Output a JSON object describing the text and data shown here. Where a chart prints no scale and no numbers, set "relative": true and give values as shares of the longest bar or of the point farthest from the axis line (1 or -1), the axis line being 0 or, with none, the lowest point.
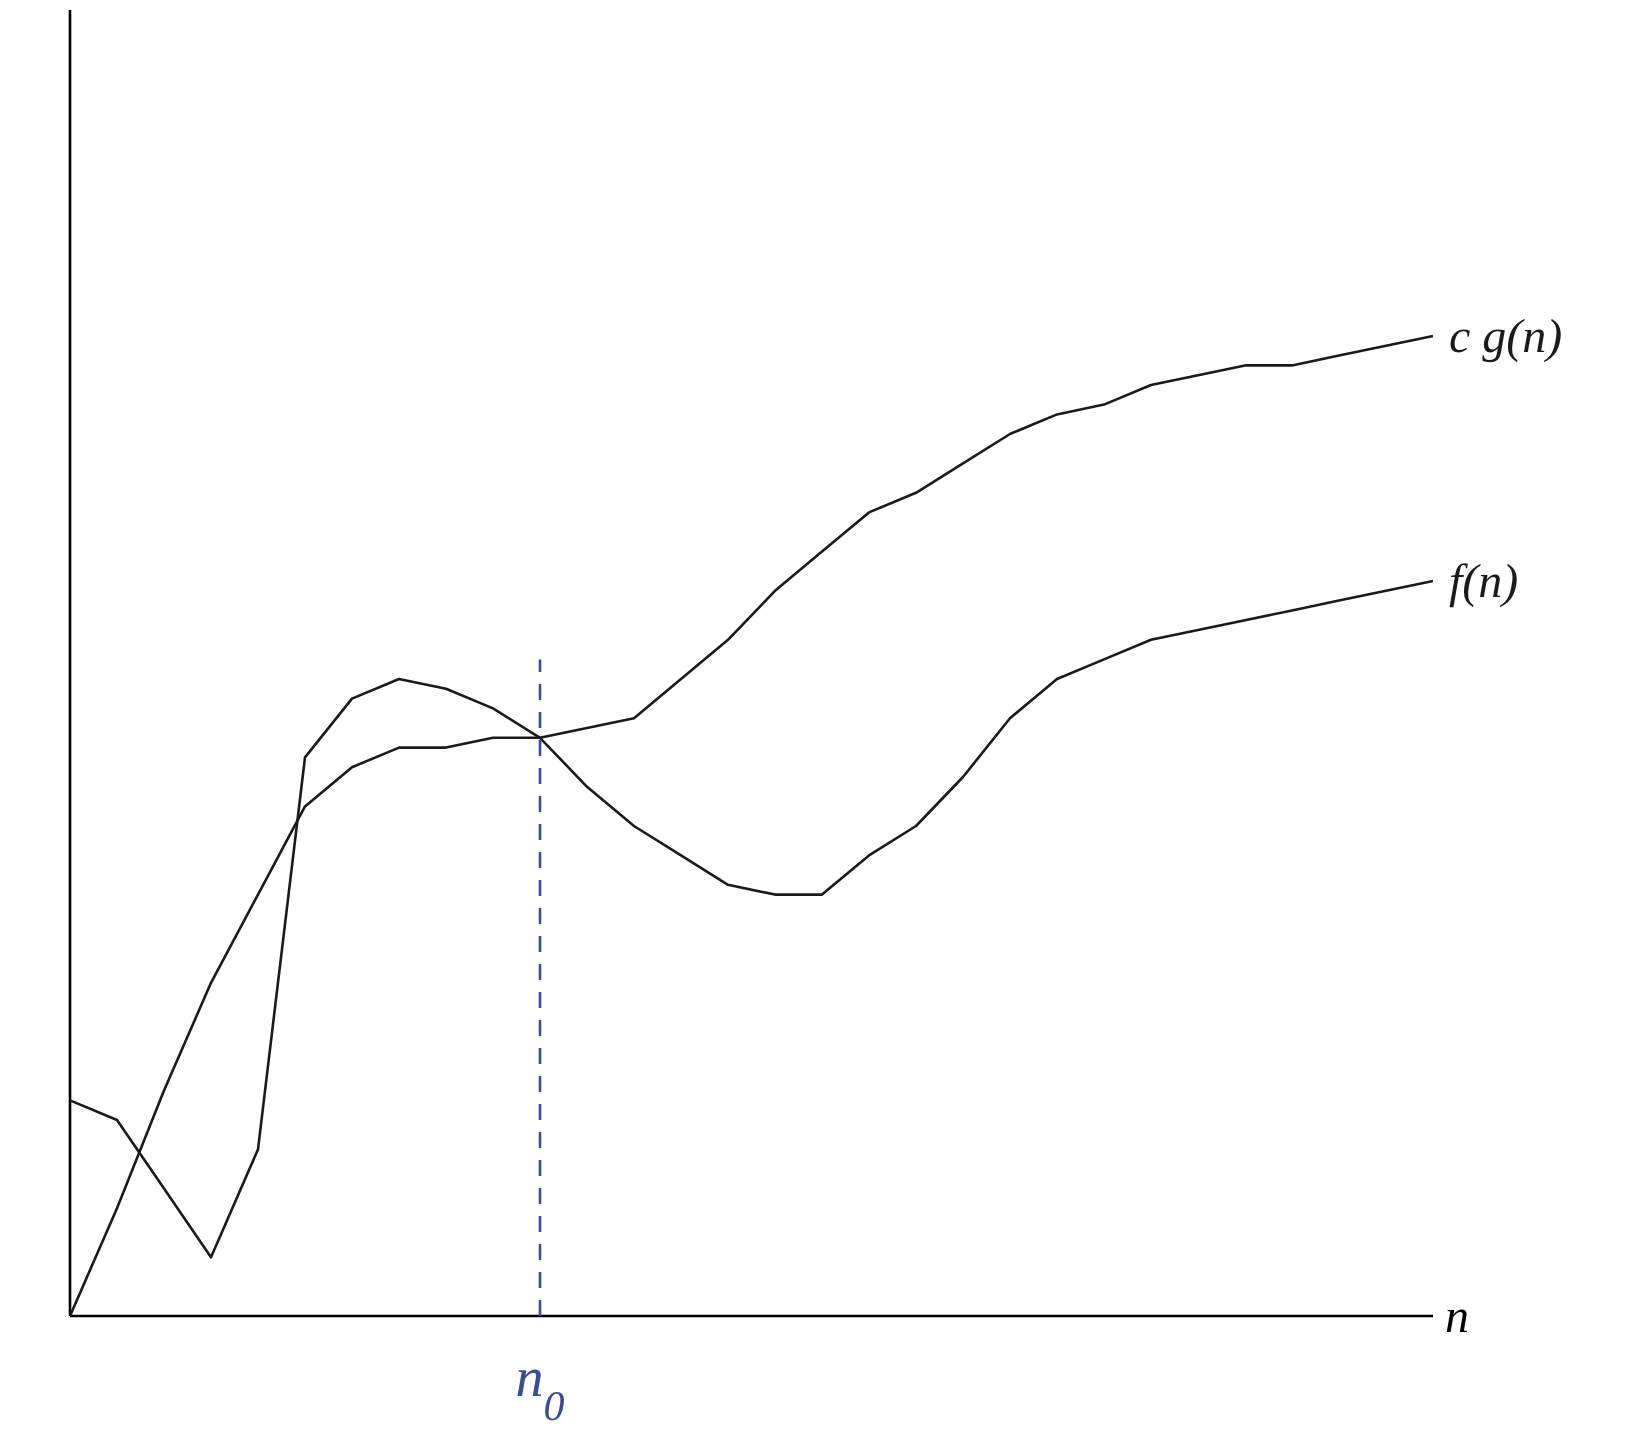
{
  "chart_data": {
    "type": "line",
    "relative": true,
    "xlabel": "n",
    "line_style": "solid",
    "categories": [
      null,
      null,
      null,
      null,
      null,
      null,
      null,
      null,
      null,
      null,
      null,
      null,
      null,
      null,
      null,
      null,
      null,
      null,
      null,
      null,
      null,
      null,
      null,
      null,
      null,
      null,
      null,
      null,
      null,
      null
    ],
    "series": [
      {
        "name": "c  g(n)",
        "color": "#1a1a1a",
        "values": [
          0,
          0.11,
          0.23,
          0.34,
          0.43,
          0.52,
          0.56,
          0.58,
          0.58,
          0.59,
          0.59,
          0.6,
          0.61,
          0.65,
          0.69,
          0.74,
          0.78,
          0.82,
          0.84,
          0.87,
          0.9,
          0.92,
          0.93,
          0.95,
          0.96,
          0.97,
          0.97,
          0.98,
          0.99,
          1
        ]
      },
      {
        "name": "f(n)",
        "color": "#1a1a1a",
        "values": [
          0.22,
          0.2,
          0.13,
          0.06,
          0.17,
          0.57,
          0.63,
          0.65,
          0.64,
          0.62,
          0.59,
          0.54,
          0.5,
          0.47,
          0.44,
          0.43,
          0.43,
          0.47,
          0.5,
          0.55,
          0.61,
          0.65,
          0.67,
          0.69,
          0.7,
          0.71,
          0.72,
          0.73,
          0.74,
          0.75
        ]
      }
    ],
    "annotations": [
      "n$_{0}$"
    ]
  }
}
